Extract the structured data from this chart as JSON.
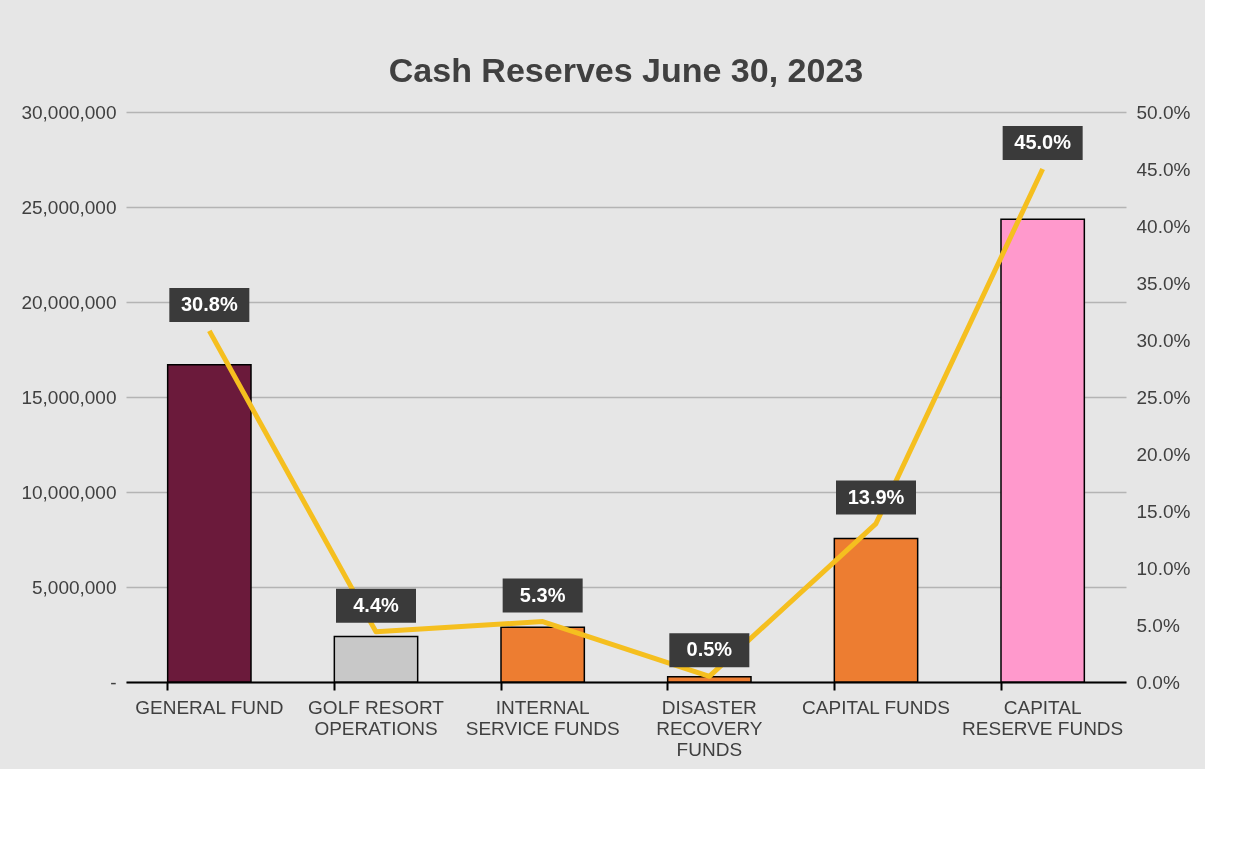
{
  "chart_data": {
    "type": "bar",
    "title": "Cash Reserves June 30, 2023",
    "categories": [
      "GENERAL FUND",
      "GOLF RESORT OPERATIONS",
      "INTERNAL SERVICE FUNDS",
      "DISASTER RECOVERY FUNDS",
      "CAPITAL FUNDS",
      "CAPITAL RESERVE FUNDS"
    ],
    "series": [
      {
        "type": "bar",
        "colors": [
          "#6b1a3b",
          "#c8c8c8",
          "#ed7d31",
          "#ed7d31",
          "#ed7d31",
          "#ff99cc"
        ],
        "values": [
          16700000,
          2400000,
          2880000,
          270000,
          7550000,
          24350000
        ]
      },
      {
        "type": "line",
        "axis": "y2",
        "color": "#f5bf1f",
        "values": [
          30.8,
          4.4,
          5.3,
          0.5,
          13.9,
          45.0
        ],
        "value_labels": [
          "30.8%",
          "4.4%",
          "5.3%",
          "0.5%",
          "13.9%",
          "45.0%"
        ]
      }
    ],
    "ylim": [
      0,
      30000000
    ],
    "yticks": [
      {
        "value": 0,
        "label": "-"
      },
      {
        "value": 5000000,
        "label": "5,000,000"
      },
      {
        "value": 10000000,
        "label": "10,000,000"
      },
      {
        "value": 15000000,
        "label": "15,000,000"
      },
      {
        "value": 20000000,
        "label": "20,000,000"
      },
      {
        "value": 25000000,
        "label": "25,000,000"
      },
      {
        "value": 30000000,
        "label": "30,000,000"
      }
    ],
    "y2lim": [
      0,
      50
    ],
    "y2ticks": [
      {
        "value": 0,
        "label": "0.0%"
      },
      {
        "value": 5,
        "label": "5.0%"
      },
      {
        "value": 10,
        "label": "10.0%"
      },
      {
        "value": 15,
        "label": "15.0%"
      },
      {
        "value": 20,
        "label": "20.0%"
      },
      {
        "value": 25,
        "label": "25.0%"
      },
      {
        "value": 30,
        "label": "30.0%"
      },
      {
        "value": 35,
        "label": "35.0%"
      },
      {
        "value": 40,
        "label": "40.0%"
      },
      {
        "value": 45,
        "label": "45.0%"
      },
      {
        "value": 50,
        "label": "50.0%"
      }
    ],
    "grid": "y",
    "legend": false
  }
}
